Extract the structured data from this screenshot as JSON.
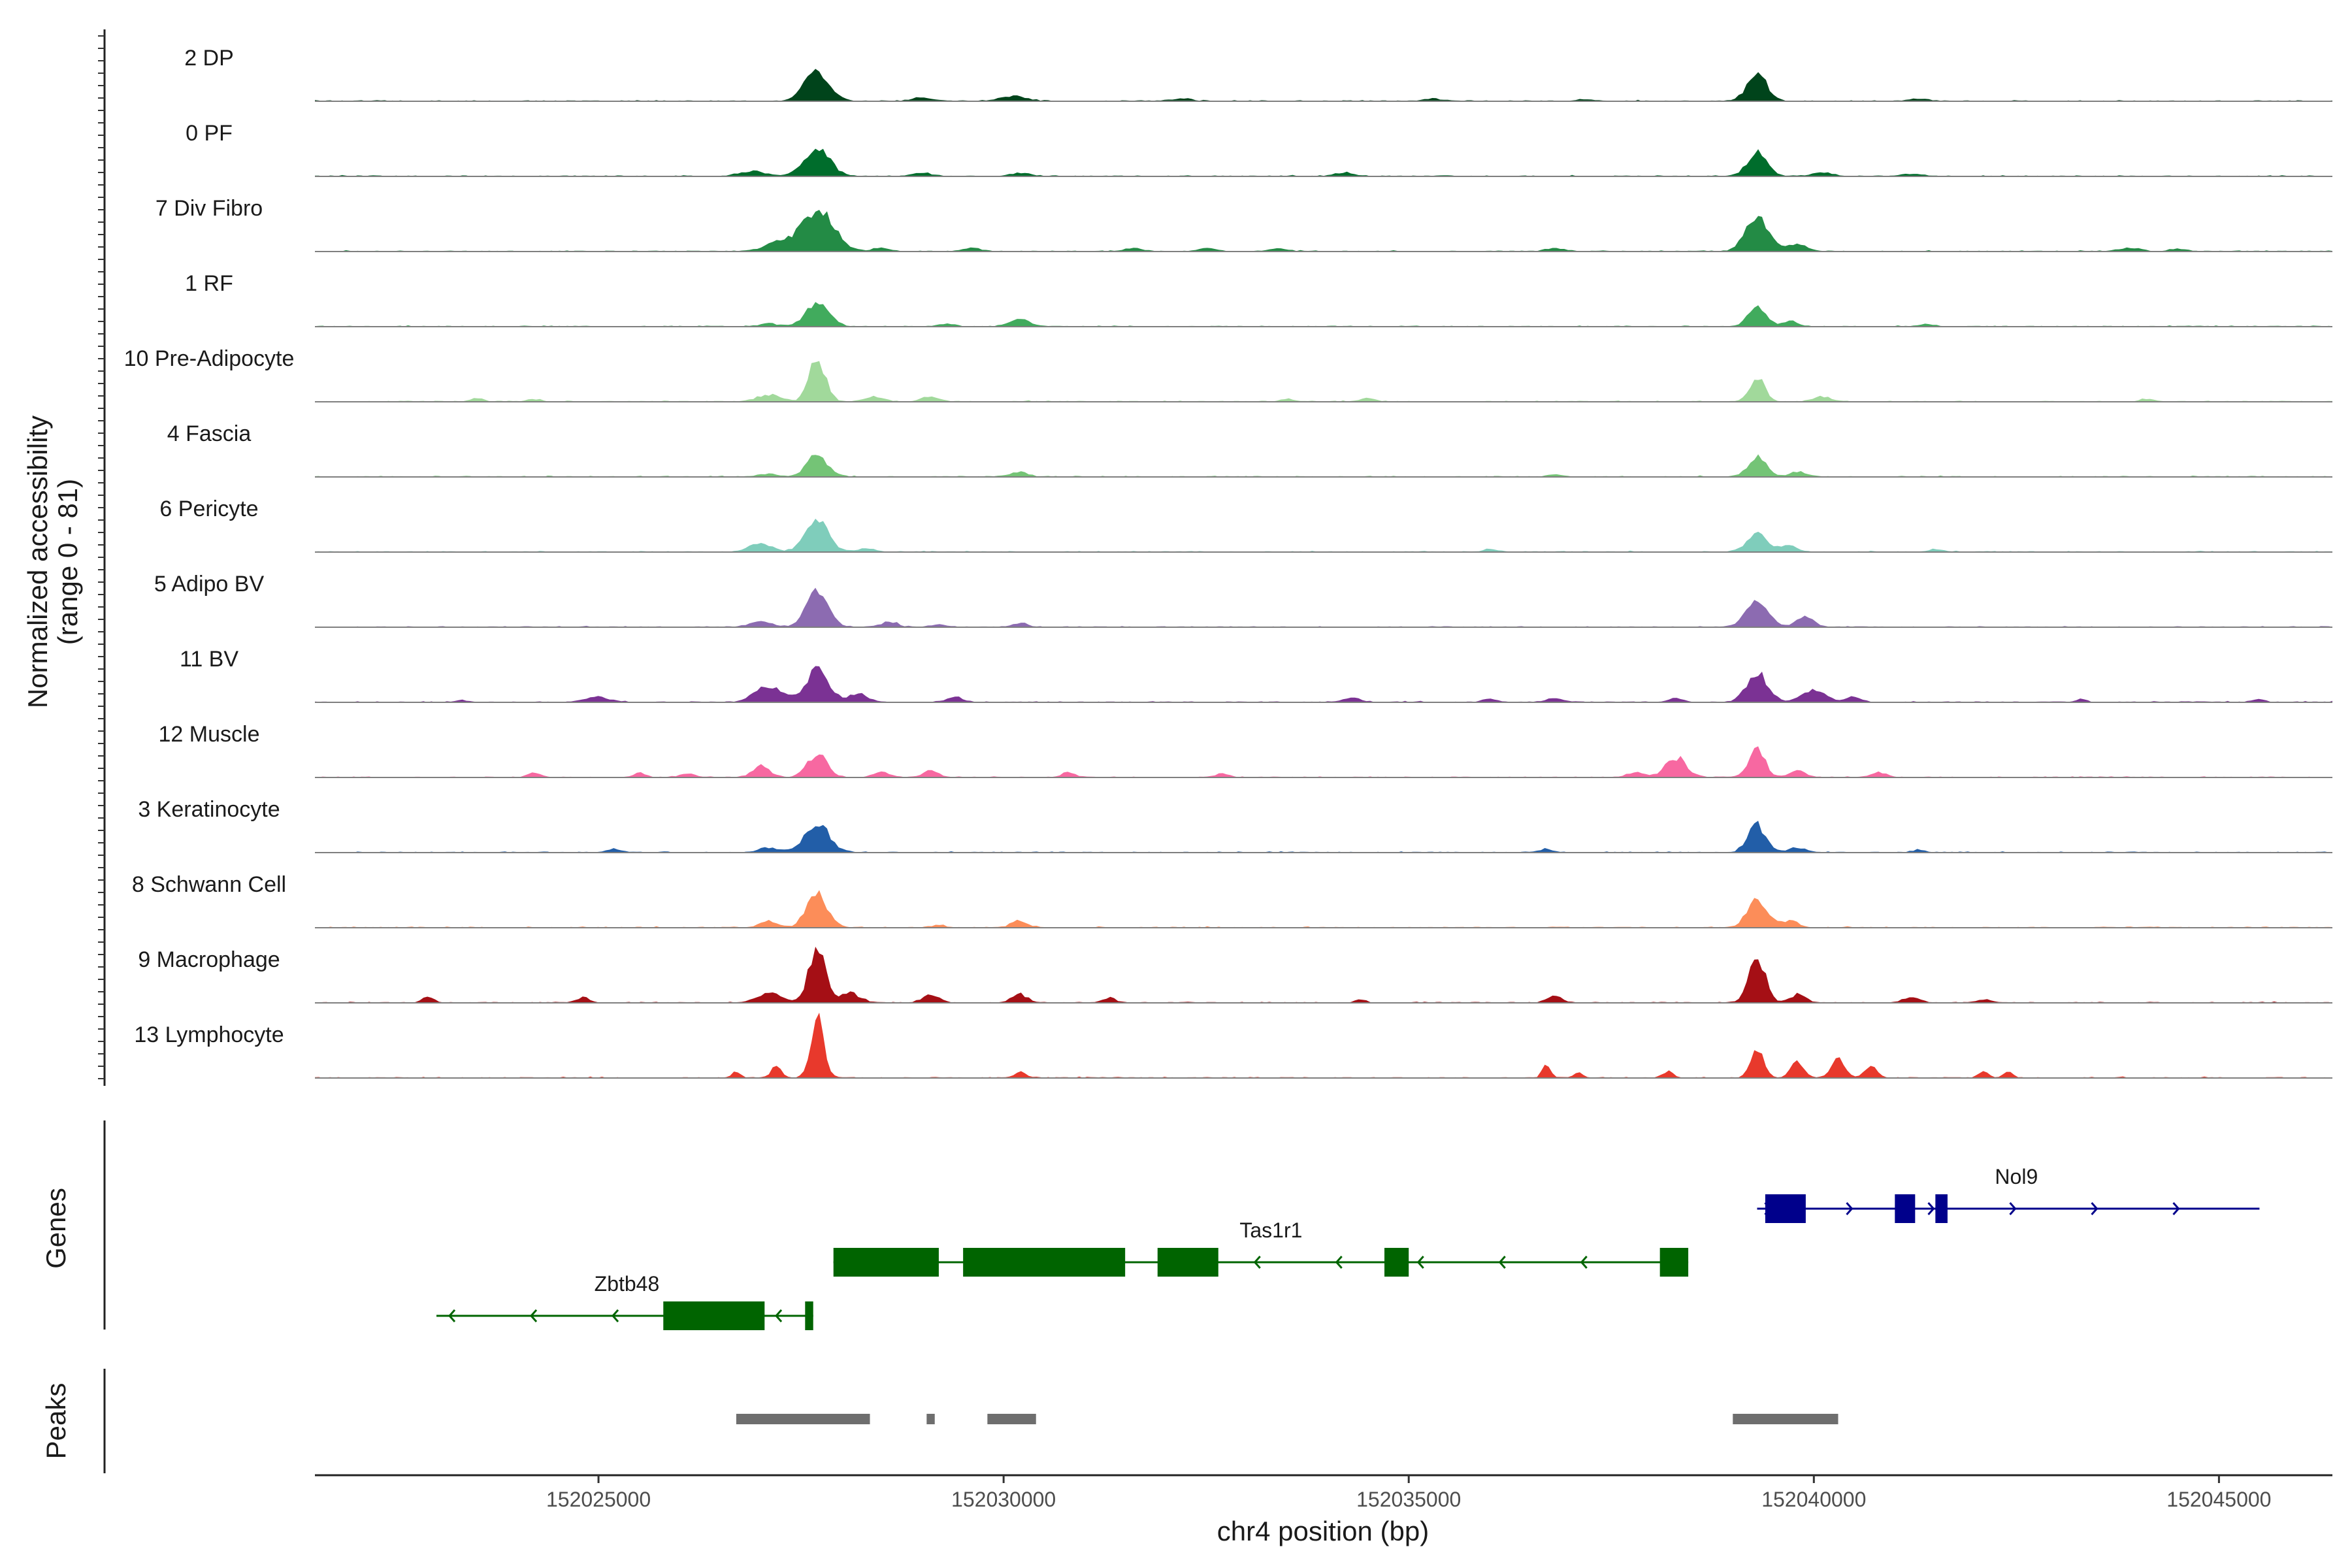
{
  "chart_data": {
    "type": "area",
    "title": "",
    "ylabel_line1": "Normalized accessibility",
    "ylabel_line2": "(range 0 - 81)",
    "y_range": [
      0,
      81
    ],
    "xlabel": "chr4 position (bp)",
    "xlim": [
      152021500,
      152046400
    ],
    "x_ticks": [
      152025000,
      152030000,
      152035000,
      152040000,
      152045000
    ],
    "x_tick_labels": [
      "152025000",
      "152030000",
      "152035000",
      "152040000",
      "152045000"
    ],
    "tracks": [
      {
        "name": "2 DP",
        "color": "#00441b",
        "peaks": [
          [
            152027700,
            38,
            150
          ],
          [
            152029000,
            4,
            120
          ],
          [
            152030100,
            6,
            150
          ],
          [
            152032200,
            3,
            120
          ],
          [
            152035300,
            3,
            80
          ],
          [
            152037200,
            2,
            120
          ],
          [
            152039300,
            33,
            120
          ],
          [
            152041300,
            3,
            120
          ]
        ]
      },
      {
        "name": "0 PF",
        "color": "#006d2c",
        "peaks": [
          [
            152027700,
            32,
            160
          ],
          [
            152026900,
            6,
            160
          ],
          [
            152029000,
            4,
            120
          ],
          [
            152030200,
            4,
            120
          ],
          [
            152034200,
            4,
            120
          ],
          [
            152039300,
            28,
            120
          ],
          [
            152040100,
            4,
            120
          ],
          [
            152041200,
            3,
            120
          ]
        ]
      },
      {
        "name": "7 Div Fibro",
        "color": "#238b45",
        "peaks": [
          [
            152027700,
            52,
            200
          ],
          [
            152027200,
            10,
            150
          ],
          [
            152028500,
            4,
            100
          ],
          [
            152029600,
            4,
            100
          ],
          [
            152031600,
            4,
            100
          ],
          [
            152032500,
            4,
            100
          ],
          [
            152033400,
            3,
            100
          ],
          [
            152036800,
            4,
            100
          ],
          [
            152039300,
            40,
            140
          ],
          [
            152039800,
            8,
            120
          ],
          [
            152043900,
            4,
            120
          ],
          [
            152044500,
            3,
            100
          ]
        ]
      },
      {
        "name": "1 RF",
        "color": "#41ab5d",
        "peaks": [
          [
            152027700,
            30,
            140
          ],
          [
            152027100,
            4,
            100
          ],
          [
            152030200,
            9,
            120
          ],
          [
            152029300,
            3,
            100
          ],
          [
            152039300,
            25,
            110
          ],
          [
            152039700,
            6,
            100
          ],
          [
            152041400,
            3,
            100
          ]
        ]
      },
      {
        "name": "10 Pre-Adipocyte",
        "color": "#a1d99b",
        "peaks": [
          [
            152027700,
            52,
            100
          ],
          [
            152027100,
            8,
            150
          ],
          [
            152028400,
            6,
            120
          ],
          [
            152029100,
            6,
            100
          ],
          [
            152039300,
            30,
            90
          ],
          [
            152040100,
            6,
            100
          ],
          [
            152023500,
            4,
            80
          ],
          [
            152024200,
            3,
            80
          ],
          [
            152033500,
            3,
            80
          ],
          [
            152034500,
            5,
            80
          ],
          [
            152044100,
            3,
            80
          ]
        ]
      },
      {
        "name": "4 Fascia",
        "color": "#74c476",
        "peaks": [
          [
            152027700,
            26,
            130
          ],
          [
            152027100,
            4,
            100
          ],
          [
            152030200,
            6,
            100
          ],
          [
            152039300,
            24,
            110
          ],
          [
            152039800,
            6,
            100
          ],
          [
            152036800,
            3,
            80
          ]
        ]
      },
      {
        "name": "6 Pericyte",
        "color": "#7fcdbb",
        "peaks": [
          [
            152027700,
            40,
            140
          ],
          [
            152027000,
            10,
            140
          ],
          [
            152028300,
            4,
            100
          ],
          [
            152039300,
            22,
            130
          ],
          [
            152039700,
            8,
            100
          ],
          [
            152036000,
            3,
            80
          ],
          [
            152041500,
            3,
            80
          ]
        ]
      },
      {
        "name": "5 Adipo BV",
        "color": "#8c6bb1",
        "peaks": [
          [
            152027700,
            48,
            130
          ],
          [
            152027000,
            8,
            120
          ],
          [
            152028600,
            6,
            100
          ],
          [
            152030200,
            5,
            80
          ],
          [
            152039300,
            36,
            130
          ],
          [
            152039900,
            12,
            110
          ],
          [
            152029200,
            3,
            80
          ]
        ]
      },
      {
        "name": "11 BV",
        "color": "#7b3294",
        "peaks": [
          [
            152027700,
            40,
            140
          ],
          [
            152027100,
            20,
            160
          ],
          [
            152028200,
            10,
            120
          ],
          [
            152025000,
            6,
            150
          ],
          [
            152029400,
            6,
            100
          ],
          [
            152034300,
            6,
            100
          ],
          [
            152036800,
            5,
            100
          ],
          [
            152038300,
            5,
            80
          ],
          [
            152039300,
            36,
            130
          ],
          [
            152040000,
            14,
            140
          ],
          [
            152040500,
            6,
            100
          ],
          [
            152043300,
            4,
            60
          ],
          [
            152045500,
            4,
            60
          ],
          [
            152023300,
            3,
            60
          ],
          [
            152036000,
            4,
            80
          ]
        ]
      },
      {
        "name": "12 Muscle",
        "color": "#f768a1",
        "peaks": [
          [
            152027700,
            28,
            120
          ],
          [
            152027000,
            14,
            100
          ],
          [
            152028500,
            6,
            100
          ],
          [
            152029100,
            10,
            80
          ],
          [
            152030800,
            6,
            80
          ],
          [
            152032700,
            5,
            80
          ],
          [
            152038300,
            24,
            130
          ],
          [
            152037800,
            6,
            100
          ],
          [
            152039300,
            34,
            100
          ],
          [
            152039800,
            8,
            100
          ],
          [
            152040800,
            6,
            100
          ],
          [
            152024200,
            5,
            80
          ],
          [
            152025500,
            5,
            80
          ],
          [
            152026100,
            5,
            80
          ]
        ]
      },
      {
        "name": "3 Keratinocyte",
        "color": "#225ea8",
        "peaks": [
          [
            152027700,
            34,
            150
          ],
          [
            152027100,
            6,
            120
          ],
          [
            152025200,
            4,
            100
          ],
          [
            152039300,
            34,
            110
          ],
          [
            152039800,
            6,
            100
          ],
          [
            152036700,
            4,
            80
          ],
          [
            152041300,
            3,
            80
          ]
        ]
      },
      {
        "name": "8 Schwann Cell",
        "color": "#fc8d59",
        "peaks": [
          [
            152027700,
            40,
            130
          ],
          [
            152027100,
            8,
            100
          ],
          [
            152030200,
            8,
            100
          ],
          [
            152029200,
            3,
            80
          ],
          [
            152039300,
            38,
            120
          ],
          [
            152039700,
            8,
            100
          ]
        ]
      },
      {
        "name": "9 Macrophage",
        "color": "#a50f15",
        "peaks": [
          [
            152027700,
            72,
            100
          ],
          [
            152027100,
            12,
            150
          ],
          [
            152028100,
            12,
            120
          ],
          [
            152029100,
            10,
            100
          ],
          [
            152030200,
            10,
            100
          ],
          [
            152031300,
            6,
            80
          ],
          [
            152022900,
            8,
            60
          ],
          [
            152024800,
            6,
            80
          ],
          [
            152036800,
            10,
            80
          ],
          [
            152039300,
            56,
            100
          ],
          [
            152039800,
            10,
            100
          ],
          [
            152041200,
            6,
            100
          ],
          [
            152042100,
            4,
            80
          ],
          [
            152034400,
            4,
            60
          ]
        ]
      },
      {
        "name": "13 Lymphocyte",
        "color": "#e8392c",
        "peaks": [
          [
            152027700,
            76,
            80
          ],
          [
            152026700,
            8,
            50
          ],
          [
            152027200,
            16,
            60
          ],
          [
            152030200,
            8,
            60
          ],
          [
            152036700,
            18,
            50
          ],
          [
            152037100,
            6,
            50
          ],
          [
            152039300,
            34,
            80
          ],
          [
            152039800,
            20,
            80
          ],
          [
            152040300,
            22,
            80
          ],
          [
            152040700,
            16,
            70
          ],
          [
            152038200,
            8,
            60
          ],
          [
            152042100,
            8,
            60
          ],
          [
            152042400,
            8,
            50
          ]
        ]
      }
    ],
    "genes_panel": {
      "title": "Genes",
      "genes": [
        {
          "name": "Nol9",
          "strand": "+",
          "start": 152039300,
          "end": 152045500,
          "color": "#00008b",
          "row": 0,
          "exons": [
            [
              152039400,
              152039900
            ],
            [
              152041000,
              152041250
            ],
            [
              152041500,
              152041650
            ]
          ]
        },
        {
          "name": "Tas1r1",
          "strand": "-",
          "start": 152027900,
          "end": 152038450,
          "color": "#006400",
          "row": 1,
          "exons": [
            [
              152027900,
              152029200
            ],
            [
              152029500,
              152031500
            ],
            [
              152031900,
              152032650
            ],
            [
              152034700,
              152035000
            ],
            [
              152038100,
              152038450
            ]
          ]
        },
        {
          "name": "Zbtb48",
          "strand": "-",
          "start": 152023000,
          "end": 152027650,
          "color": "#006400",
          "row": 2,
          "exons": [
            [
              152025800,
              152027050
            ],
            [
              152027550,
              152027650
            ]
          ]
        }
      ]
    },
    "peaks_panel": {
      "title": "Peaks",
      "color": "#6e6e6e",
      "intervals": [
        [
          152026700,
          152028350
        ],
        [
          152029050,
          152029150
        ],
        [
          152029800,
          152030400
        ],
        [
          152039000,
          152040300
        ]
      ]
    }
  }
}
